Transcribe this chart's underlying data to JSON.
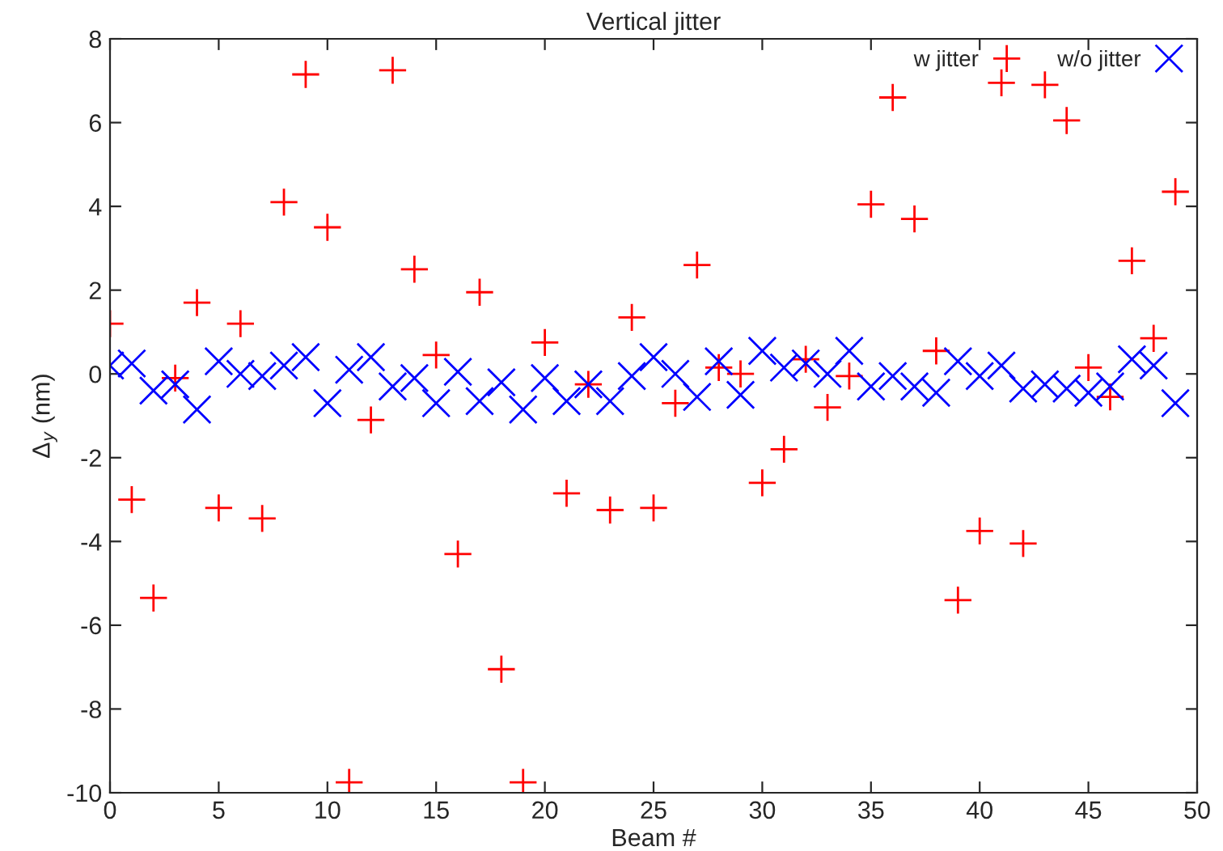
{
  "chart_data": {
    "type": "scatter",
    "title": "Vertical jitter",
    "xlabel": "Beam #",
    "ylabel": "Δ$_{y}$ (nm)",
    "x": [
      0,
      1,
      2,
      3,
      4,
      5,
      6,
      7,
      8,
      9,
      10,
      11,
      12,
      13,
      14,
      15,
      16,
      17,
      18,
      19,
      20,
      21,
      22,
      23,
      24,
      25,
      26,
      27,
      28,
      29,
      30,
      31,
      32,
      33,
      34,
      35,
      36,
      37,
      38,
      39,
      40,
      41,
      42,
      43,
      44,
      45,
      46,
      47,
      48,
      49
    ],
    "series": [
      {
        "name": "w jitter",
        "color": "#ff0000",
        "marker": "cross",
        "values": [
          1.2,
          -3.0,
          -5.35,
          -0.1,
          1.7,
          -3.2,
          1.2,
          -3.45,
          4.1,
          7.15,
          3.5,
          -9.75,
          -1.1,
          7.25,
          2.5,
          0.45,
          -4.3,
          1.95,
          -7.05,
          -9.75,
          0.75,
          -2.85,
          -0.25,
          -3.25,
          1.35,
          -3.2,
          -0.7,
          2.6,
          0.15,
          0.0,
          -2.6,
          -1.8,
          0.35,
          -0.8,
          -0.05,
          4.05,
          6.6,
          3.7,
          0.55,
          -5.4,
          -3.75,
          6.95,
          -4.05,
          6.9,
          6.05,
          0.15,
          -0.55,
          2.7,
          0.85,
          4.35
        ]
      },
      {
        "name": "w/o jitter",
        "color": "#0000ff",
        "marker": "x",
        "values": [
          0.2,
          0.25,
          -0.4,
          -0.25,
          -0.85,
          0.3,
          0.0,
          -0.05,
          0.2,
          0.4,
          -0.7,
          0.1,
          0.4,
          -0.3,
          -0.1,
          -0.7,
          0.05,
          -0.65,
          -0.2,
          -0.85,
          -0.1,
          -0.65,
          -0.25,
          -0.65,
          -0.05,
          0.4,
          0.0,
          -0.55,
          0.3,
          -0.5,
          0.55,
          0.15,
          0.25,
          0.0,
          0.55,
          -0.3,
          -0.05,
          -0.3,
          -0.45,
          0.3,
          -0.05,
          0.2,
          -0.35,
          -0.25,
          -0.35,
          -0.45,
          -0.3,
          0.35,
          0.2,
          -0.7
        ]
      }
    ],
    "xlim": [
      0,
      50
    ],
    "xticks": [
      0,
      5,
      10,
      15,
      20,
      25,
      30,
      35,
      40,
      45,
      50
    ],
    "ylim": [
      -10,
      8
    ],
    "yticks": [
      -10,
      -8,
      -6,
      -4,
      -2,
      0,
      2,
      4,
      6,
      8
    ],
    "legend": "top right",
    "grid": false
  }
}
